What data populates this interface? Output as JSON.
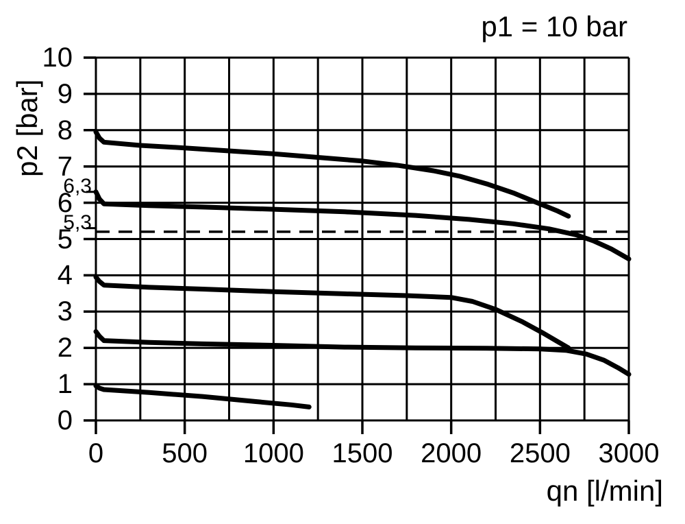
{
  "page": {
    "background_color": "#ffffff",
    "foreground_color": "#000000"
  },
  "chart_data": {
    "type": "line",
    "title": "p1 = 10 bar",
    "xlabel": "qn [l/min]",
    "ylabel": "p2 [bar]",
    "xlim": [
      0,
      3000
    ],
    "ylim": [
      0,
      10
    ],
    "grid": "on",
    "x_grid_step": 250,
    "y_grid_step": 1,
    "x_ticks": [
      0,
      500,
      1000,
      1500,
      2000,
      2500,
      3000
    ],
    "x_tick_labels": [
      "0",
      "500",
      "1000",
      "1500",
      "2000",
      "2500",
      "3000"
    ],
    "y_ticks": [
      0,
      1,
      2,
      3,
      4,
      5,
      6,
      7,
      8,
      9,
      10
    ],
    "y_tick_labels": [
      "0",
      "1",
      "2",
      "3",
      "4",
      "5",
      "6",
      "7",
      "8",
      "9",
      "10"
    ],
    "extra_y_ticks": [
      {
        "value": 6.3,
        "label": "6,3"
      },
      {
        "value": 5.3,
        "label": "5,3"
      }
    ],
    "reference_line": {
      "y": 5.2,
      "style": "dashed"
    },
    "line_color": "#000000",
    "series": [
      {
        "name": "curve-p2-7.7-bar",
        "points": [
          [
            0,
            7.95
          ],
          [
            20,
            7.78
          ],
          [
            45,
            7.67
          ],
          [
            250,
            7.58
          ],
          [
            500,
            7.51
          ],
          [
            750,
            7.43
          ],
          [
            1000,
            7.35
          ],
          [
            1250,
            7.25
          ],
          [
            1500,
            7.15
          ],
          [
            1700,
            7.03
          ],
          [
            1900,
            6.88
          ],
          [
            2050,
            6.73
          ],
          [
            2200,
            6.52
          ],
          [
            2350,
            6.27
          ],
          [
            2500,
            5.97
          ],
          [
            2600,
            5.77
          ],
          [
            2660,
            5.63
          ]
        ]
      },
      {
        "name": "curve-p2-6.0-bar",
        "points": [
          [
            0,
            6.3
          ],
          [
            20,
            6.1
          ],
          [
            45,
            5.97
          ],
          [
            300,
            5.92
          ],
          [
            600,
            5.88
          ],
          [
            1000,
            5.82
          ],
          [
            1400,
            5.75
          ],
          [
            1800,
            5.65
          ],
          [
            2100,
            5.54
          ],
          [
            2350,
            5.42
          ],
          [
            2550,
            5.28
          ],
          [
            2700,
            5.12
          ],
          [
            2800,
            4.95
          ],
          [
            2900,
            4.73
          ],
          [
            3000,
            4.45
          ]
        ]
      },
      {
        "name": "curve-p2-3.8-bar",
        "points": [
          [
            0,
            3.95
          ],
          [
            20,
            3.83
          ],
          [
            45,
            3.73
          ],
          [
            300,
            3.67
          ],
          [
            600,
            3.62
          ],
          [
            1000,
            3.55
          ],
          [
            1400,
            3.49
          ],
          [
            1750,
            3.44
          ],
          [
            2000,
            3.39
          ],
          [
            2120,
            3.28
          ],
          [
            2250,
            3.06
          ],
          [
            2400,
            2.72
          ],
          [
            2520,
            2.4
          ],
          [
            2600,
            2.17
          ],
          [
            2660,
            2.0
          ]
        ]
      },
      {
        "name": "curve-p2-2.2-bar",
        "points": [
          [
            0,
            2.45
          ],
          [
            20,
            2.32
          ],
          [
            45,
            2.2
          ],
          [
            300,
            2.15
          ],
          [
            600,
            2.11
          ],
          [
            1000,
            2.07
          ],
          [
            1400,
            2.02
          ],
          [
            1800,
            2.0
          ],
          [
            2200,
            1.99
          ],
          [
            2500,
            1.97
          ],
          [
            2650,
            1.93
          ],
          [
            2760,
            1.83
          ],
          [
            2860,
            1.66
          ],
          [
            2940,
            1.45
          ],
          [
            3000,
            1.27
          ]
        ]
      },
      {
        "name": "curve-p2-0.9-bar",
        "points": [
          [
            0,
            0.95
          ],
          [
            20,
            0.89
          ],
          [
            45,
            0.85
          ],
          [
            300,
            0.77
          ],
          [
            600,
            0.66
          ],
          [
            900,
            0.52
          ],
          [
            1100,
            0.43
          ],
          [
            1200,
            0.37
          ]
        ]
      }
    ]
  }
}
